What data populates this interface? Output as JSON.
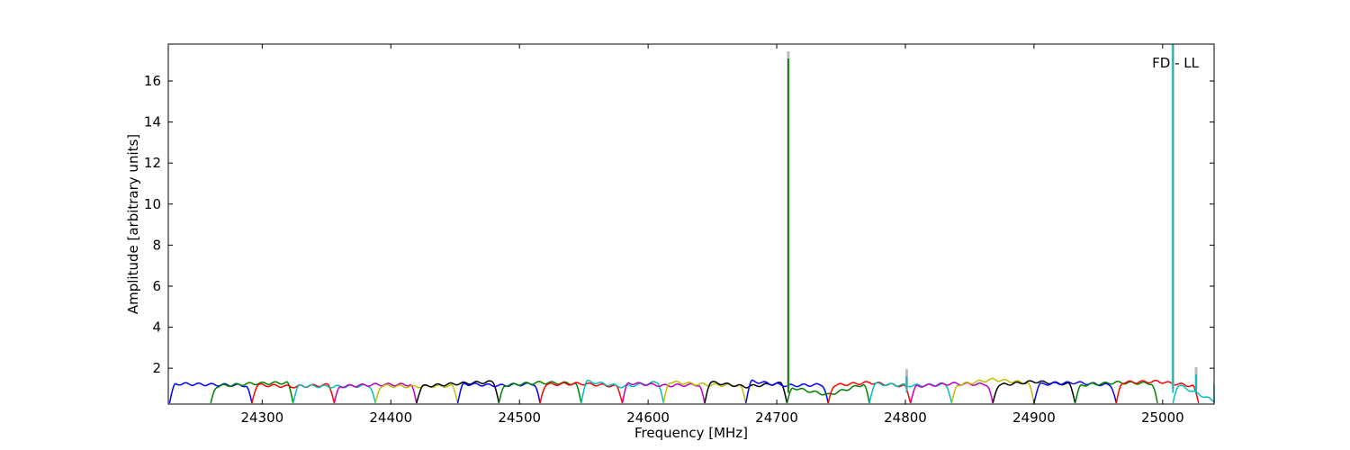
{
  "chart_data": {
    "type": "line",
    "title": "",
    "annotation": "FD - LL",
    "xlabel": "Frequency [MHz]",
    "ylabel": "Amplitude [arbitrary units]",
    "xlim": [
      24227,
      25040
    ],
    "ylim": [
      0.25,
      17.8
    ],
    "xticks": [
      24300,
      24400,
      24500,
      24600,
      24700,
      24800,
      24900,
      25000
    ],
    "yticks": [
      2,
      4,
      6,
      8,
      10,
      12,
      14,
      16
    ],
    "grid": false,
    "legend": "none",
    "band_width_mhz": 64,
    "band_step_mhz": 32,
    "band_start_mhz": 24228,
    "colors": [
      "#0000ff",
      "#008000",
      "#ff0000",
      "#00bfbf",
      "#bf00bf",
      "#bfbf00",
      "#000000"
    ],
    "series": [
      {
        "color": "#0000ff",
        "x_start": 24228,
        "levels": [
          1.25,
          1.2,
          1.15
        ]
      },
      {
        "color": "#008000",
        "x_start": 24260,
        "levels": [
          1.1,
          1.25,
          1.3
        ]
      },
      {
        "color": "#ff0000",
        "x_start": 24292,
        "levels": [
          1.2,
          1.1,
          1.2
        ]
      },
      {
        "color": "#00bfbf",
        "x_start": 24324,
        "levels": [
          1.15,
          1.1,
          1.15
        ]
      },
      {
        "color": "#bf00bf",
        "x_start": 24356,
        "levels": [
          1.1,
          1.2,
          1.2
        ]
      },
      {
        "color": "#bfbf00",
        "x_start": 24388,
        "levels": [
          1.15,
          1.1,
          1.15
        ]
      },
      {
        "color": "#000000",
        "x_start": 24420,
        "levels": [
          1.1,
          1.25,
          1.35
        ]
      },
      {
        "color": "#0000ff",
        "x_start": 24452,
        "levels": [
          1.25,
          1.15,
          1.25
        ]
      },
      {
        "color": "#008000",
        "x_start": 24484,
        "levels": [
          1.15,
          1.3,
          1.25
        ]
      },
      {
        "color": "#ff0000",
        "x_start": 24516,
        "levels": [
          1.2,
          1.25,
          1.1
        ]
      },
      {
        "color": "#00bfbf",
        "x_start": 24548,
        "levels": [
          1.4,
          1.1,
          1.35
        ]
      },
      {
        "color": "#bf00bf",
        "x_start": 24580,
        "levels": [
          1.3,
          1.15,
          1.2
        ]
      },
      {
        "color": "#bfbf00",
        "x_start": 24612,
        "levels": [
          1.35,
          1.2,
          1.15
        ]
      },
      {
        "color": "#000000",
        "x_start": 24644,
        "levels": [
          1.35,
          1.1,
          1.3
        ]
      },
      {
        "color": "#0000ff",
        "x_start": 24676,
        "levels": [
          1.4,
          1.15,
          1.2
        ]
      },
      {
        "color": "#008000",
        "x_start": 24708,
        "levels": [
          1.1,
          0.7,
          1.3
        ],
        "spike": {
          "x": 24709,
          "y": 17.1
        }
      },
      {
        "color": "#ff0000",
        "x_start": 24740,
        "levels": [
          1.15,
          1.3,
          1.1
        ]
      },
      {
        "color": "#00bfbf",
        "x_start": 24772,
        "levels": [
          1.25,
          1.15,
          1.2
        ],
        "spike": {
          "x": 24801,
          "y": 1.6
        }
      },
      {
        "color": "#bf00bf",
        "x_start": 24804,
        "levels": [
          1.1,
          1.25,
          1.2
        ]
      },
      {
        "color": "#bfbf00",
        "x_start": 24836,
        "levels": [
          1.15,
          1.45,
          1.25
        ]
      },
      {
        "color": "#000000",
        "x_start": 24868,
        "levels": [
          1.15,
          1.35,
          1.2
        ]
      },
      {
        "color": "#0000ff",
        "x_start": 24900,
        "levels": [
          1.2,
          1.3,
          1.15
        ]
      },
      {
        "color": "#008000",
        "x_start": 24932,
        "levels": [
          1.15,
          1.3,
          1.25
        ]
      },
      {
        "color": "#ff0000",
        "x_start": 24964,
        "levels": [
          1.3,
          1.35,
          1.1
        ]
      },
      {
        "color": "#00bfbf",
        "x_start": 25008,
        "levels": [
          1.3,
          0.4,
          1.3
        ],
        "spike": {
          "x": 25008,
          "y": 17.8
        },
        "spike2": {
          "x": 25026,
          "y": 1.7
        }
      }
    ]
  }
}
